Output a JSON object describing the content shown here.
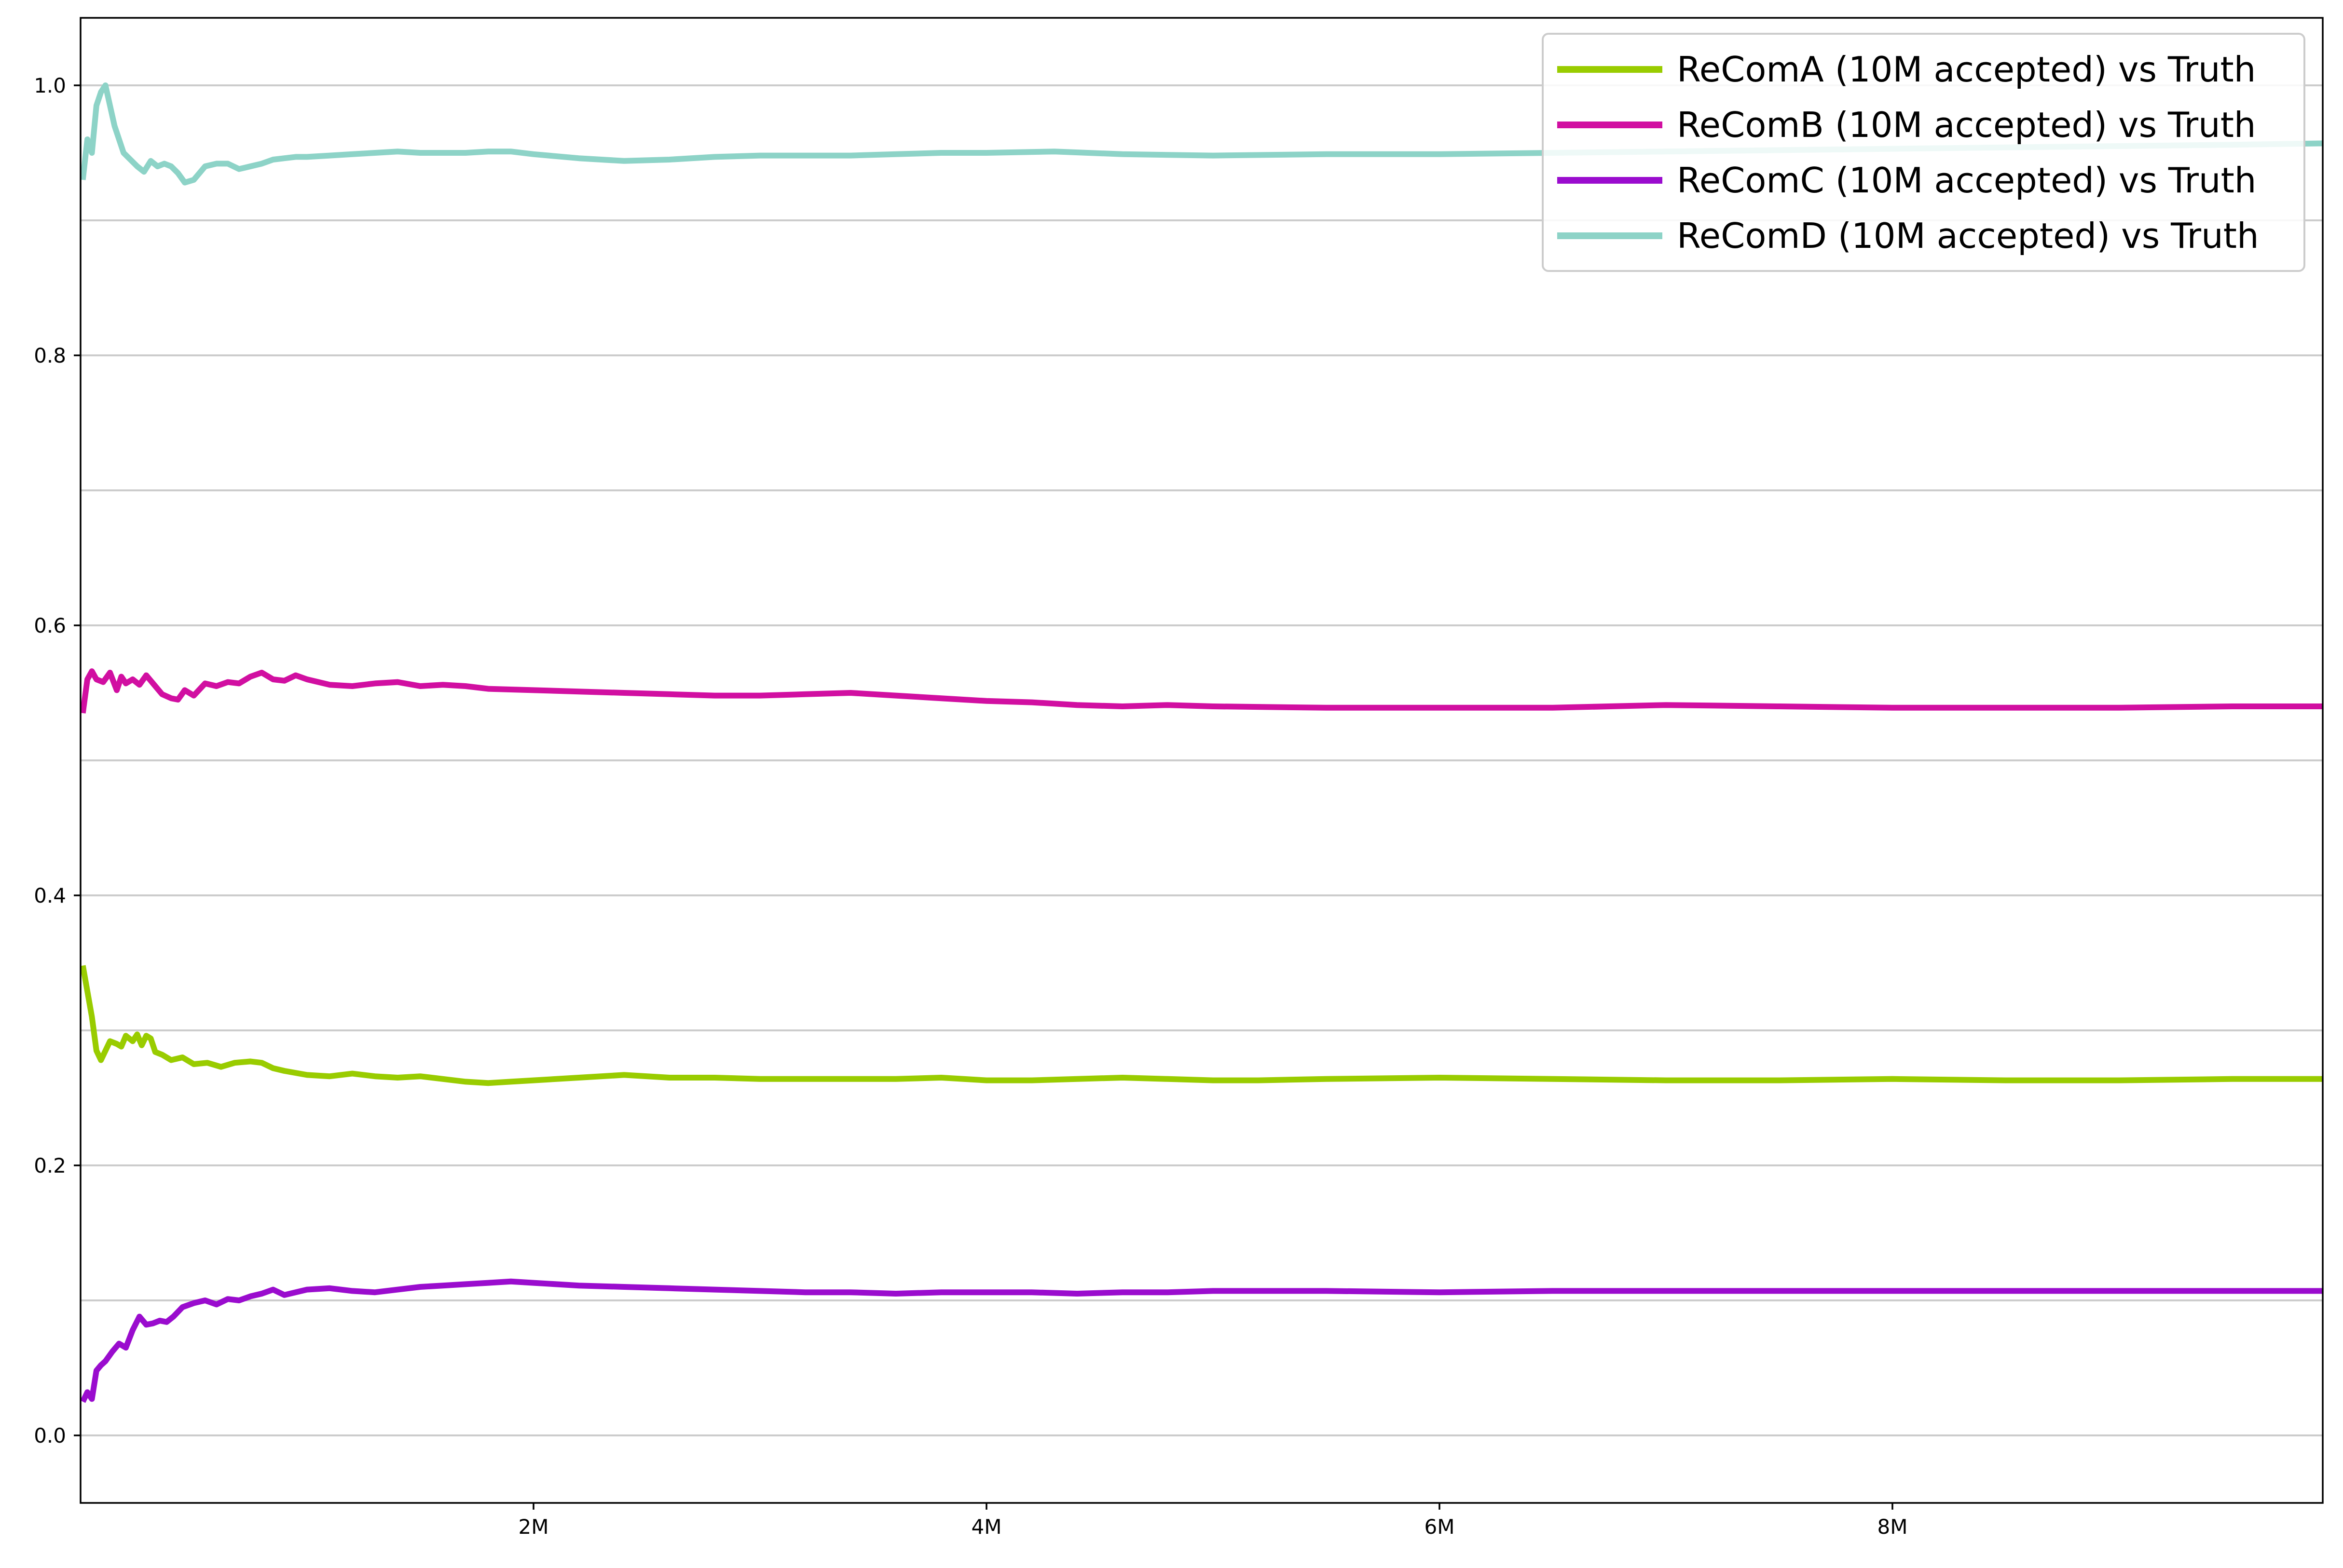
{
  "chart_data": {
    "type": "line",
    "title": "",
    "xlabel": "",
    "ylabel": "",
    "xlim": [
      0,
      9900000
    ],
    "ylim": [
      -0.05,
      1.05
    ],
    "grid": "horizontal",
    "legend_position": "top-right",
    "x_ticks": [
      {
        "value": 2000000,
        "label": "2M"
      },
      {
        "value": 4000000,
        "label": "4M"
      },
      {
        "value": 6000000,
        "label": "6M"
      },
      {
        "value": 8000000,
        "label": "8M"
      }
    ],
    "y_ticks": [
      {
        "value": 0.0,
        "label": "0.0"
      },
      {
        "value": 0.2,
        "label": "0.2"
      },
      {
        "value": 0.4,
        "label": "0.4"
      },
      {
        "value": 0.6,
        "label": "0.6"
      },
      {
        "value": 0.8,
        "label": "0.8"
      },
      {
        "value": 1.0,
        "label": "1.0"
      }
    ],
    "y_grid_values": [
      0.0,
      0.1,
      0.2,
      0.3,
      0.4,
      0.5,
      0.6,
      0.7,
      0.8,
      0.9,
      1.0
    ],
    "series": [
      {
        "name": "ReComA (10M accepted) vs Truth",
        "color": "#99cc00",
        "x": [
          10000,
          50000,
          70000,
          90000,
          130000,
          160000,
          180000,
          200000,
          230000,
          250000,
          270000,
          290000,
          310000,
          330000,
          360000,
          400000,
          450000,
          500000,
          560000,
          620000,
          680000,
          750000,
          800000,
          850000,
          900000,
          1000000,
          1100000,
          1200000,
          1300000,
          1400000,
          1500000,
          1600000,
          1700000,
          1800000,
          1900000,
          2000000,
          2200000,
          2400000,
          2600000,
          2800000,
          3000000,
          3200000,
          3400000,
          3600000,
          3800000,
          4000000,
          4200000,
          4400000,
          4600000,
          4800000,
          5000000,
          5200000,
          5500000,
          6000000,
          6500000,
          7000000,
          7500000,
          8000000,
          8500000,
          9000000,
          9500000,
          9900000
        ],
        "y": [
          0.348,
          0.31,
          0.285,
          0.278,
          0.292,
          0.29,
          0.288,
          0.296,
          0.292,
          0.297,
          0.289,
          0.296,
          0.294,
          0.284,
          0.282,
          0.278,
          0.28,
          0.275,
          0.276,
          0.273,
          0.276,
          0.277,
          0.276,
          0.272,
          0.27,
          0.267,
          0.266,
          0.268,
          0.266,
          0.265,
          0.266,
          0.264,
          0.262,
          0.261,
          0.262,
          0.263,
          0.265,
          0.267,
          0.265,
          0.265,
          0.264,
          0.264,
          0.264,
          0.264,
          0.265,
          0.263,
          0.263,
          0.264,
          0.265,
          0.264,
          0.263,
          0.263,
          0.264,
          0.265,
          0.264,
          0.263,
          0.263,
          0.264,
          0.263,
          0.263,
          0.264,
          0.264
        ]
      },
      {
        "name": "ReComB (10M accepted) vs Truth",
        "color": "#d10fa1",
        "x": [
          10000,
          30000,
          50000,
          70000,
          100000,
          130000,
          160000,
          180000,
          200000,
          230000,
          260000,
          290000,
          330000,
          360000,
          400000,
          430000,
          460000,
          500000,
          550000,
          600000,
          650000,
          700000,
          750000,
          800000,
          850000,
          900000,
          950000,
          1000000,
          1100000,
          1200000,
          1300000,
          1400000,
          1500000,
          1600000,
          1700000,
          1800000,
          2000000,
          2200000,
          2400000,
          2600000,
          2800000,
          3000000,
          3200000,
          3400000,
          3600000,
          3800000,
          4000000,
          4200000,
          4400000,
          4600000,
          4800000,
          5000000,
          5500000,
          6000000,
          6500000,
          7000000,
          7500000,
          8000000,
          8500000,
          9000000,
          9500000,
          9900000
        ],
        "y": [
          0.535,
          0.56,
          0.566,
          0.56,
          0.558,
          0.565,
          0.552,
          0.562,
          0.557,
          0.56,
          0.556,
          0.563,
          0.555,
          0.549,
          0.546,
          0.545,
          0.552,
          0.548,
          0.557,
          0.555,
          0.558,
          0.557,
          0.562,
          0.565,
          0.56,
          0.559,
          0.563,
          0.56,
          0.556,
          0.555,
          0.557,
          0.558,
          0.555,
          0.556,
          0.555,
          0.553,
          0.552,
          0.551,
          0.55,
          0.549,
          0.548,
          0.548,
          0.549,
          0.55,
          0.548,
          0.546,
          0.544,
          0.543,
          0.541,
          0.54,
          0.541,
          0.54,
          0.539,
          0.539,
          0.539,
          0.541,
          0.54,
          0.539,
          0.539,
          0.539,
          0.54,
          0.54
        ]
      },
      {
        "name": "ReComC (10M accepted) vs Truth",
        "color": "#9a0cce",
        "x": [
          10000,
          30000,
          50000,
          70000,
          90000,
          110000,
          140000,
          170000,
          200000,
          230000,
          260000,
          290000,
          320000,
          350000,
          380000,
          410000,
          450000,
          500000,
          550000,
          600000,
          650000,
          700000,
          750000,
          800000,
          850000,
          900000,
          950000,
          1000000,
          1100000,
          1200000,
          1300000,
          1400000,
          1500000,
          1600000,
          1700000,
          1800000,
          1900000,
          2000000,
          2200000,
          2400000,
          2600000,
          2800000,
          3000000,
          3200000,
          3400000,
          3600000,
          3800000,
          4000000,
          4200000,
          4400000,
          4600000,
          4800000,
          5000000,
          5500000,
          6000000,
          6500000,
          7000000,
          7500000,
          8000000,
          8500000,
          9000000,
          9500000,
          9900000
        ],
        "y": [
          0.025,
          0.032,
          0.027,
          0.048,
          0.052,
          0.055,
          0.062,
          0.068,
          0.065,
          0.078,
          0.088,
          0.082,
          0.083,
          0.085,
          0.084,
          0.088,
          0.095,
          0.098,
          0.1,
          0.097,
          0.101,
          0.1,
          0.103,
          0.105,
          0.108,
          0.104,
          0.106,
          0.108,
          0.109,
          0.107,
          0.106,
          0.108,
          0.11,
          0.111,
          0.112,
          0.113,
          0.114,
          0.113,
          0.111,
          0.11,
          0.109,
          0.108,
          0.107,
          0.106,
          0.106,
          0.105,
          0.106,
          0.106,
          0.106,
          0.105,
          0.106,
          0.106,
          0.107,
          0.107,
          0.106,
          0.107,
          0.107,
          0.107,
          0.107,
          0.107,
          0.107,
          0.107,
          0.107
        ]
      },
      {
        "name": "ReComD (10M accepted) vs Truth",
        "color": "#8dd3c7",
        "x": [
          10000,
          30000,
          50000,
          70000,
          90000,
          110000,
          130000,
          150000,
          170000,
          190000,
          220000,
          250000,
          280000,
          310000,
          340000,
          370000,
          400000,
          430000,
          460000,
          500000,
          550000,
          600000,
          650000,
          700000,
          750000,
          800000,
          850000,
          900000,
          950000,
          1000000,
          1100000,
          1200000,
          1300000,
          1400000,
          1500000,
          1600000,
          1700000,
          1800000,
          1900000,
          2000000,
          2200000,
          2400000,
          2600000,
          2800000,
          3000000,
          3200000,
          3400000,
          3600000,
          3800000,
          4000000,
          4300000,
          4600000,
          5000000,
          5500000,
          6000000,
          6500000,
          7000000,
          7500000,
          8000000,
          8500000,
          9000000,
          9500000,
          9900000
        ],
        "y": [
          0.93,
          0.96,
          0.95,
          0.985,
          0.995,
          1.0,
          0.985,
          0.97,
          0.96,
          0.95,
          0.945,
          0.94,
          0.936,
          0.944,
          0.94,
          0.942,
          0.94,
          0.935,
          0.928,
          0.93,
          0.94,
          0.942,
          0.942,
          0.938,
          0.94,
          0.942,
          0.945,
          0.946,
          0.947,
          0.947,
          0.948,
          0.949,
          0.95,
          0.951,
          0.95,
          0.95,
          0.95,
          0.951,
          0.951,
          0.949,
          0.946,
          0.944,
          0.945,
          0.947,
          0.948,
          0.948,
          0.948,
          0.949,
          0.95,
          0.95,
          0.951,
          0.949,
          0.948,
          0.949,
          0.949,
          0.95,
          0.951,
          0.952,
          0.953,
          0.954,
          0.955,
          0.956,
          0.957
        ]
      }
    ]
  }
}
